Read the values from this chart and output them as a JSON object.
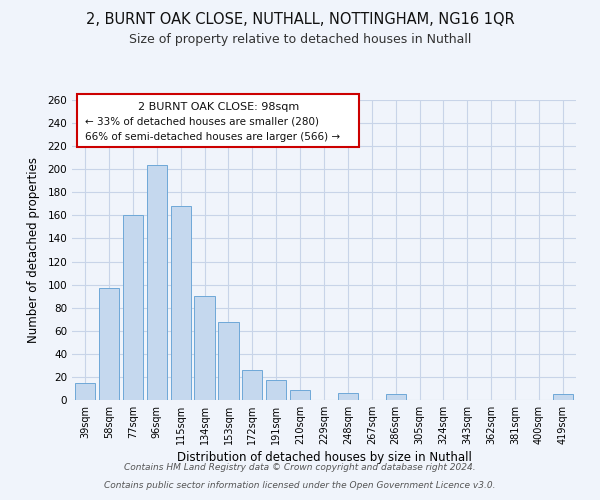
{
  "title": "2, BURNT OAK CLOSE, NUTHALL, NOTTINGHAM, NG16 1QR",
  "subtitle": "Size of property relative to detached houses in Nuthall",
  "xlabel": "Distribution of detached houses by size in Nuthall",
  "ylabel": "Number of detached properties",
  "bar_color": "#c5d8ee",
  "bar_edge_color": "#6ea8d8",
  "categories": [
    "39sqm",
    "58sqm",
    "77sqm",
    "96sqm",
    "115sqm",
    "134sqm",
    "153sqm",
    "172sqm",
    "191sqm",
    "210sqm",
    "229sqm",
    "248sqm",
    "267sqm",
    "286sqm",
    "305sqm",
    "324sqm",
    "343sqm",
    "362sqm",
    "381sqm",
    "400sqm",
    "419sqm"
  ],
  "values": [
    15,
    97,
    160,
    204,
    168,
    90,
    68,
    26,
    17,
    9,
    0,
    6,
    0,
    5,
    0,
    0,
    0,
    0,
    0,
    0,
    5
  ],
  "ylim": [
    0,
    260
  ],
  "yticks": [
    0,
    20,
    40,
    60,
    80,
    100,
    120,
    140,
    160,
    180,
    200,
    220,
    240,
    260
  ],
  "annotation_title": "2 BURNT OAK CLOSE: 98sqm",
  "annotation_line1": "← 33% of detached houses are smaller (280)",
  "annotation_line2": "66% of semi-detached houses are larger (566) →",
  "background_color": "#f0f4fb",
  "grid_color": "#c8d4e8",
  "footer_line1": "Contains HM Land Registry data © Crown copyright and database right 2024.",
  "footer_line2": "Contains public sector information licensed under the Open Government Licence v3.0."
}
